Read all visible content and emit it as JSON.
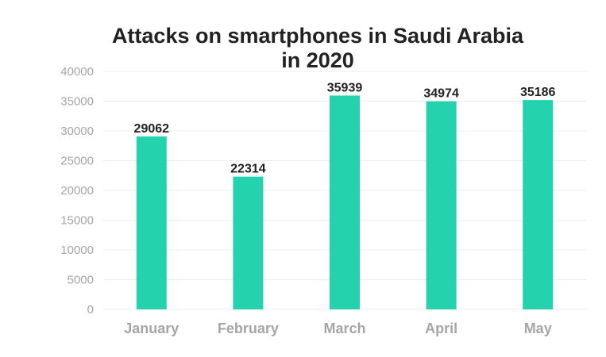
{
  "chart_data": {
    "type": "bar",
    "title_line1": "Attacks on smartphones in Saudi Arabia",
    "title_line2": "in 2020",
    "categories": [
      "January",
      "February",
      "March",
      "April",
      "May"
    ],
    "values": [
      29062,
      22314,
      35939,
      34974,
      35186
    ],
    "ylim": [
      0,
      40000
    ],
    "yticks": [
      0,
      5000,
      10000,
      15000,
      20000,
      25000,
      30000,
      35000,
      40000
    ],
    "xlabel": "",
    "ylabel": "",
    "grid": true,
    "bar_color": "#24d3ad",
    "gridline_color": "#ececec"
  }
}
